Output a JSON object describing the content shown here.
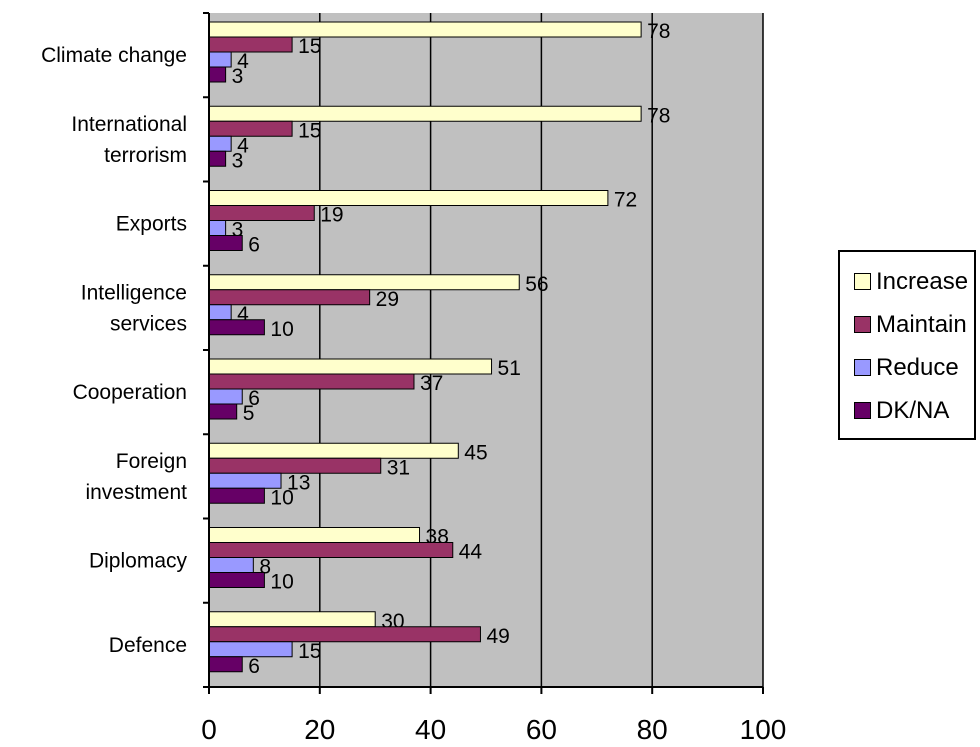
{
  "chart_data": {
    "type": "bar",
    "orientation": "horizontal",
    "categories": [
      "Climate change",
      "International terrorism",
      "Exports",
      "Intelligence services",
      "Cooperation",
      "Foreign investment",
      "Diplomacy",
      "Defence"
    ],
    "category_lines": [
      [
        "Climate change"
      ],
      [
        "International",
        "terrorism"
      ],
      [
        "Exports"
      ],
      [
        "Intelligence",
        "services"
      ],
      [
        "Cooperation"
      ],
      [
        "Foreign",
        "investment"
      ],
      [
        "Diplomacy"
      ],
      [
        "Defence"
      ]
    ],
    "series": [
      {
        "name": "Increase",
        "color": "#ffffcc",
        "values": [
          78,
          78,
          72,
          56,
          51,
          45,
          38,
          30
        ]
      },
      {
        "name": "Maintain",
        "color": "#993366",
        "values": [
          15,
          15,
          19,
          29,
          37,
          31,
          44,
          49
        ]
      },
      {
        "name": "Reduce",
        "color": "#9999ff",
        "values": [
          4,
          4,
          3,
          4,
          6,
          13,
          8,
          15
        ]
      },
      {
        "name": "DK/NA",
        "color": "#660066",
        "values": [
          3,
          3,
          6,
          10,
          5,
          10,
          10,
          6
        ]
      }
    ],
    "xlim": [
      0,
      100
    ],
    "xticks": [
      0,
      20,
      40,
      60,
      80,
      100
    ],
    "grid": true,
    "plot_background": "#c0c0c0",
    "legend_position": "right",
    "data_labels": true,
    "title": "",
    "xlabel": "",
    "ylabel": ""
  }
}
